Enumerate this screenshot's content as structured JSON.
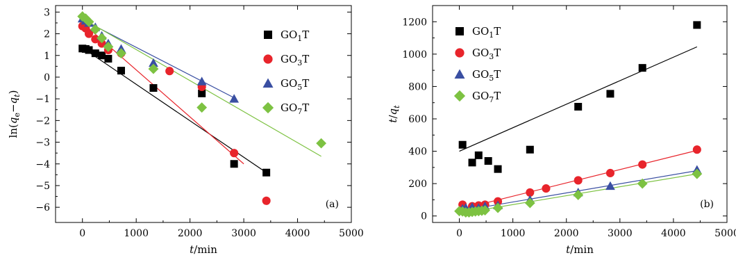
{
  "colors": {
    "GO1T": "#000000",
    "GO3T": "#e8242b",
    "GO5T": "#3a4fa2",
    "GO7T": "#7dc242"
  },
  "chart_data": [
    {
      "type": "scatter",
      "panel_label": "(a)",
      "xlabel": "t/min",
      "ylabel": "ln(qe−qt)",
      "xlim": [
        -500,
        5000
      ],
      "ylim": [
        -6.7,
        3.3
      ],
      "xticks": [
        0,
        1000,
        2000,
        3000,
        4000,
        5000
      ],
      "yticks": [
        -6,
        -5,
        -4,
        -3,
        -2,
        -1,
        0,
        1,
        2,
        3
      ],
      "legend_position": "upper-right",
      "series": [
        {
          "name": "GO1T",
          "marker": "square",
          "color": "#000000",
          "x": [
            0,
            60,
            120,
            240,
            360,
            480,
            720,
            1320,
            2220,
            2820,
            3420
          ],
          "y": [
            1.32,
            1.3,
            1.25,
            1.1,
            1.0,
            0.85,
            0.3,
            -0.5,
            -0.75,
            -4.0,
            -4.4
          ],
          "fit": [
            [
              0,
              1.35
            ],
            [
              3420,
              -4.4
            ]
          ]
        },
        {
          "name": "GO3T",
          "marker": "circle",
          "color": "#e8242b",
          "x": [
            0,
            60,
            120,
            240,
            360,
            480,
            720,
            1620,
            2220,
            2820,
            3420
          ],
          "y": [
            2.35,
            2.25,
            2.0,
            1.75,
            1.55,
            1.25,
            1.1,
            0.28,
            -0.45,
            -3.5,
            -5.7
          ],
          "fit": [
            [
              0,
              2.5
            ],
            [
              3000,
              -4.0
            ]
          ]
        },
        {
          "name": "GO5T",
          "marker": "triangle",
          "color": "#3a4fa2",
          "x": [
            0,
            60,
            120,
            240,
            360,
            480,
            720,
            1320,
            2220,
            2820
          ],
          "y": [
            2.7,
            2.6,
            2.5,
            2.3,
            1.9,
            1.55,
            1.3,
            0.65,
            -0.2,
            -1.0
          ],
          "fit": [
            [
              0,
              2.65
            ],
            [
              2820,
              -0.95
            ]
          ]
        },
        {
          "name": "GO7T",
          "marker": "diamond",
          "color": "#7dc242",
          "x": [
            0,
            60,
            120,
            240,
            360,
            480,
            720,
            1320,
            2220,
            4440
          ],
          "y": [
            2.8,
            2.7,
            2.55,
            2.2,
            1.8,
            1.4,
            1.1,
            0.38,
            -1.4,
            -3.05
          ],
          "fit": [
            [
              0,
              2.7
            ],
            [
              4440,
              -3.65
            ]
          ]
        }
      ]
    },
    {
      "type": "scatter",
      "panel_label": "(b)",
      "xlabel": "t/min",
      "ylabel": "t/qt",
      "xlim": [
        -500,
        5000
      ],
      "ylim": [
        -40,
        1300
      ],
      "xticks": [
        0,
        1000,
        2000,
        3000,
        4000,
        5000
      ],
      "yticks": [
        0,
        200,
        400,
        600,
        800,
        1000,
        1200
      ],
      "legend_position": "upper-left",
      "series": [
        {
          "name": "GO1T",
          "marker": "square",
          "color": "#000000",
          "x": [
            60,
            240,
            360,
            540,
            720,
            1320,
            2220,
            2820,
            3420,
            4440
          ],
          "y": [
            440,
            330,
            375,
            340,
            290,
            410,
            675,
            755,
            915,
            1180
          ],
          "fit": [
            [
              0,
              400
            ],
            [
              4440,
              1045
            ]
          ]
        },
        {
          "name": "GO3T",
          "marker": "circle",
          "color": "#e8242b",
          "x": [
            60,
            240,
            360,
            480,
            720,
            1320,
            1620,
            2220,
            2820,
            3420,
            4440
          ],
          "y": [
            70,
            60,
            65,
            70,
            90,
            145,
            170,
            220,
            265,
            318,
            410
          ],
          "fit": [
            [
              0,
              40
            ],
            [
              4440,
              405
            ]
          ]
        },
        {
          "name": "GO5T",
          "marker": "triangle",
          "color": "#3a4fa2",
          "x": [
            60,
            120,
            240,
            360,
            480,
            720,
            1320,
            2220,
            2820,
            4440
          ],
          "y": [
            45,
            50,
            55,
            50,
            60,
            65,
            100,
            145,
            185,
            285
          ],
          "fit": [
            [
              0,
              30
            ],
            [
              4440,
              280
            ]
          ]
        },
        {
          "name": "GO7T",
          "marker": "diamond",
          "color": "#7dc242",
          "x": [
            0,
            60,
            120,
            180,
            240,
            300,
            360,
            420,
            480,
            720,
            1320,
            2220,
            3420,
            4440
          ],
          "y": [
            30,
            28,
            22,
            22,
            25,
            28,
            30,
            32,
            35,
            50,
            80,
            130,
            200,
            260
          ],
          "fit": [
            [
              0,
              15
            ],
            [
              4440,
              260
            ]
          ]
        }
      ]
    }
  ]
}
